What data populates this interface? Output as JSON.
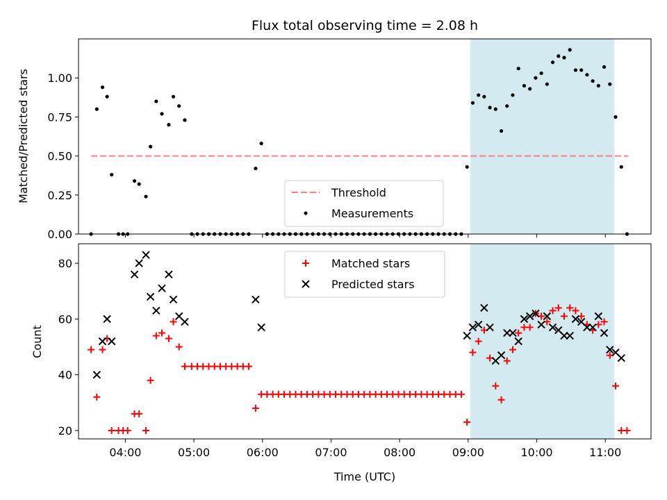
{
  "title": "Flux total observing time = 2.08 h",
  "xlabel": "Time (UTC)",
  "x_ticks": [
    "04:00",
    "05:00",
    "06:00",
    "07:00",
    "08:00",
    "09:00",
    "10:00",
    "11:00"
  ],
  "colors": {
    "highlight": "#d3eaf0",
    "threshold": "#ff7f7f",
    "measurement": "#000000",
    "matched": "#ff0000",
    "predicted": "#000000"
  },
  "chart_data": [
    {
      "type": "scatter",
      "ylabel": "Matched/Predicted stars",
      "xlim": [
        "03:19",
        "11:40"
      ],
      "ylim": [
        0,
        1.25
      ],
      "y_ticks": [
        "0.00",
        "0.25",
        "0.50",
        "0.75",
        "1.00"
      ],
      "highlight_span": [
        "09:02",
        "11:08"
      ],
      "legend_position": "lower-center",
      "threshold": {
        "name": "Threshold",
        "value": 0.5,
        "x": [
          "03:30",
          "11:20"
        ]
      },
      "measurements": {
        "name": "Measurements",
        "points": [
          [
            "03:30",
            0.0
          ],
          [
            "03:35",
            0.8
          ],
          [
            "03:40",
            0.94
          ],
          [
            "03:44",
            0.88
          ],
          [
            "03:48",
            0.38
          ],
          [
            "03:54",
            0.0
          ],
          [
            "03:58",
            0.0
          ],
          [
            "04:02",
            0.0
          ],
          [
            "04:08",
            0.34
          ],
          [
            "04:12",
            0.32
          ],
          [
            "04:18",
            0.24
          ],
          [
            "04:22",
            0.56
          ],
          [
            "04:27",
            0.85
          ],
          [
            "04:32",
            0.77
          ],
          [
            "04:38",
            0.7
          ],
          [
            "04:42",
            0.88
          ],
          [
            "04:47",
            0.82
          ],
          [
            "04:52",
            0.73
          ],
          [
            "04:58",
            0.0
          ],
          [
            "05:03",
            0.0
          ],
          [
            "05:08",
            0.0
          ],
          [
            "05:13",
            0.0
          ],
          [
            "05:18",
            0.0
          ],
          [
            "05:23",
            0.0
          ],
          [
            "05:28",
            0.0
          ],
          [
            "05:33",
            0.0
          ],
          [
            "05:38",
            0.0
          ],
          [
            "05:43",
            0.0
          ],
          [
            "05:48",
            0.0
          ],
          [
            "05:54",
            0.42
          ],
          [
            "05:59",
            0.58
          ],
          [
            "06:04",
            0.0
          ],
          [
            "06:09",
            0.0
          ],
          [
            "06:14",
            0.0
          ],
          [
            "06:19",
            0.0
          ],
          [
            "06:24",
            0.0
          ],
          [
            "06:29",
            0.0
          ],
          [
            "06:34",
            0.0
          ],
          [
            "06:39",
            0.0
          ],
          [
            "06:44",
            0.0
          ],
          [
            "06:49",
            0.0
          ],
          [
            "06:54",
            0.0
          ],
          [
            "06:59",
            0.0
          ],
          [
            "07:04",
            0.0
          ],
          [
            "07:09",
            0.0
          ],
          [
            "07:14",
            0.0
          ],
          [
            "07:19",
            0.0
          ],
          [
            "07:24",
            0.0
          ],
          [
            "07:29",
            0.0
          ],
          [
            "07:34",
            0.0
          ],
          [
            "07:39",
            0.0
          ],
          [
            "07:44",
            0.0
          ],
          [
            "07:49",
            0.0
          ],
          [
            "07:54",
            0.0
          ],
          [
            "07:59",
            0.0
          ],
          [
            "08:04",
            0.0
          ],
          [
            "08:09",
            0.0
          ],
          [
            "08:14",
            0.0
          ],
          [
            "08:19",
            0.0
          ],
          [
            "08:24",
            0.0
          ],
          [
            "08:29",
            0.0
          ],
          [
            "08:34",
            0.0
          ],
          [
            "08:39",
            0.0
          ],
          [
            "08:44",
            0.0
          ],
          [
            "08:49",
            0.0
          ],
          [
            "08:54",
            0.0
          ],
          [
            "08:59",
            0.43
          ],
          [
            "09:04",
            0.84
          ],
          [
            "09:09",
            0.89
          ],
          [
            "09:14",
            0.88
          ],
          [
            "09:19",
            0.81
          ],
          [
            "09:24",
            0.8
          ],
          [
            "09:29",
            0.66
          ],
          [
            "09:34",
            0.82
          ],
          [
            "09:39",
            0.89
          ],
          [
            "09:44",
            1.06
          ],
          [
            "09:49",
            0.95
          ],
          [
            "09:54",
            0.93
          ],
          [
            "09:59",
            1.0
          ],
          [
            "10:04",
            1.03
          ],
          [
            "10:09",
            0.96
          ],
          [
            "10:14",
            1.1
          ],
          [
            "10:19",
            1.14
          ],
          [
            "10:24",
            1.13
          ],
          [
            "10:29",
            1.18
          ],
          [
            "10:34",
            1.05
          ],
          [
            "10:39",
            1.05
          ],
          [
            "10:44",
            1.02
          ],
          [
            "10:49",
            0.98
          ],
          [
            "10:54",
            0.95
          ],
          [
            "10:59",
            1.07
          ],
          [
            "11:04",
            0.96
          ],
          [
            "11:09",
            0.75
          ],
          [
            "11:14",
            0.43
          ],
          [
            "11:19",
            0.0
          ]
        ]
      }
    },
    {
      "type": "scatter",
      "ylabel": "Count",
      "xlim": [
        "03:19",
        "11:40"
      ],
      "ylim": [
        17,
        87
      ],
      "y_ticks": [
        "20",
        "40",
        "60",
        "80"
      ],
      "highlight_span": [
        "09:02",
        "11:08"
      ],
      "legend_position": "upper-center",
      "series": [
        {
          "name": "Matched stars",
          "points": [
            [
              "03:30",
              49
            ],
            [
              "03:35",
              32
            ],
            [
              "03:40",
              49
            ],
            [
              "03:44",
              53
            ],
            [
              "03:48",
              20
            ],
            [
              "03:54",
              20
            ],
            [
              "03:58",
              20
            ],
            [
              "04:02",
              20
            ],
            [
              "04:08",
              26
            ],
            [
              "04:12",
              26
            ],
            [
              "04:18",
              20
            ],
            [
              "04:22",
              38
            ],
            [
              "04:27",
              54
            ],
            [
              "04:32",
              55
            ],
            [
              "04:38",
              53
            ],
            [
              "04:42",
              59
            ],
            [
              "04:47",
              50
            ],
            [
              "04:52",
              43
            ],
            [
              "04:58",
              43
            ],
            [
              "05:03",
              43
            ],
            [
              "05:08",
              43
            ],
            [
              "05:13",
              43
            ],
            [
              "05:18",
              43
            ],
            [
              "05:23",
              43
            ],
            [
              "05:28",
              43
            ],
            [
              "05:33",
              43
            ],
            [
              "05:38",
              43
            ],
            [
              "05:43",
              43
            ],
            [
              "05:48",
              43
            ],
            [
              "05:54",
              28
            ],
            [
              "05:59",
              33
            ],
            [
              "06:04",
              33
            ],
            [
              "06:09",
              33
            ],
            [
              "06:14",
              33
            ],
            [
              "06:19",
              33
            ],
            [
              "06:24",
              33
            ],
            [
              "06:29",
              33
            ],
            [
              "06:34",
              33
            ],
            [
              "06:39",
              33
            ],
            [
              "06:44",
              33
            ],
            [
              "06:49",
              33
            ],
            [
              "06:54",
              33
            ],
            [
              "06:59",
              33
            ],
            [
              "07:04",
              33
            ],
            [
              "07:09",
              33
            ],
            [
              "07:14",
              33
            ],
            [
              "07:19",
              33
            ],
            [
              "07:24",
              33
            ],
            [
              "07:29",
              33
            ],
            [
              "07:34",
              33
            ],
            [
              "07:39",
              33
            ],
            [
              "07:44",
              33
            ],
            [
              "07:49",
              33
            ],
            [
              "07:54",
              33
            ],
            [
              "07:59",
              33
            ],
            [
              "08:04",
              33
            ],
            [
              "08:09",
              33
            ],
            [
              "08:14",
              33
            ],
            [
              "08:19",
              33
            ],
            [
              "08:24",
              33
            ],
            [
              "08:29",
              33
            ],
            [
              "08:34",
              33
            ],
            [
              "08:39",
              33
            ],
            [
              "08:44",
              33
            ],
            [
              "08:49",
              33
            ],
            [
              "08:54",
              33
            ],
            [
              "08:59",
              23
            ],
            [
              "09:04",
              48
            ],
            [
              "09:09",
              52
            ],
            [
              "09:14",
              56
            ],
            [
              "09:19",
              46
            ],
            [
              "09:24",
              36
            ],
            [
              "09:29",
              31
            ],
            [
              "09:34",
              45
            ],
            [
              "09:39",
              49
            ],
            [
              "09:44",
              55
            ],
            [
              "09:49",
              57
            ],
            [
              "09:54",
              57
            ],
            [
              "09:59",
              62
            ],
            [
              "10:04",
              61
            ],
            [
              "10:09",
              59
            ],
            [
              "10:14",
              63
            ],
            [
              "10:19",
              64
            ],
            [
              "10:24",
              61
            ],
            [
              "10:29",
              64
            ],
            [
              "10:34",
              63
            ],
            [
              "10:39",
              61
            ],
            [
              "10:44",
              58
            ],
            [
              "10:49",
              56
            ],
            [
              "10:54",
              58
            ],
            [
              "10:59",
              59
            ],
            [
              "11:04",
              47
            ],
            [
              "11:09",
              36
            ],
            [
              "11:14",
              20
            ],
            [
              "11:19",
              20
            ]
          ]
        },
        {
          "name": "Predicted stars",
          "points": [
            [
              "03:35",
              40
            ],
            [
              "03:40",
              52
            ],
            [
              "03:44",
              60
            ],
            [
              "03:48",
              52
            ],
            [
              "04:08",
              76
            ],
            [
              "04:12",
              80
            ],
            [
              "04:18",
              83
            ],
            [
              "04:22",
              68
            ],
            [
              "04:27",
              63
            ],
            [
              "04:32",
              71
            ],
            [
              "04:38",
              76
            ],
            [
              "04:42",
              67
            ],
            [
              "04:47",
              61
            ],
            [
              "04:52",
              59
            ],
            [
              "05:54",
              67
            ],
            [
              "05:59",
              57
            ],
            [
              "08:59",
              54
            ],
            [
              "09:04",
              57
            ],
            [
              "09:09",
              58
            ],
            [
              "09:14",
              64
            ],
            [
              "09:19",
              57
            ],
            [
              "09:24",
              45
            ],
            [
              "09:29",
              47
            ],
            [
              "09:34",
              55
            ],
            [
              "09:39",
              55
            ],
            [
              "09:44",
              52
            ],
            [
              "09:49",
              60
            ],
            [
              "09:54",
              61
            ],
            [
              "09:59",
              62
            ],
            [
              "10:04",
              58
            ],
            [
              "10:09",
              61
            ],
            [
              "10:14",
              57
            ],
            [
              "10:19",
              56
            ],
            [
              "10:24",
              54
            ],
            [
              "10:29",
              54
            ],
            [
              "10:34",
              60
            ],
            [
              "10:39",
              59
            ],
            [
              "10:44",
              57
            ],
            [
              "10:49",
              57
            ],
            [
              "10:54",
              61
            ],
            [
              "10:59",
              55
            ],
            [
              "11:04",
              49
            ],
            [
              "11:09",
              48
            ],
            [
              "11:14",
              46
            ]
          ]
        }
      ]
    }
  ]
}
